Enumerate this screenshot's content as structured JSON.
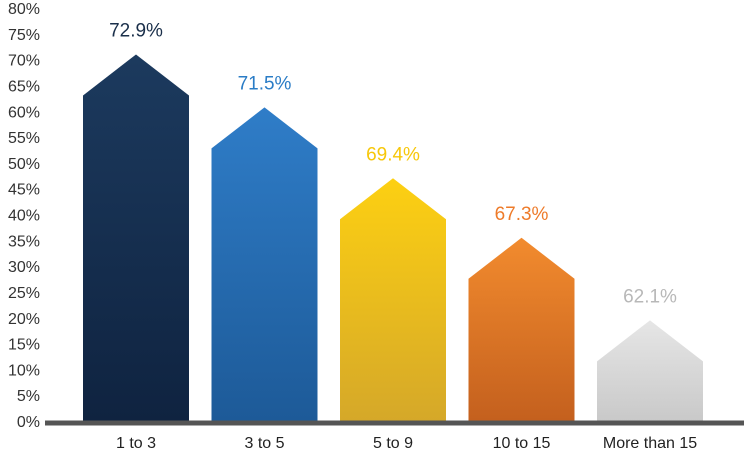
{
  "chart_data": {
    "type": "bar",
    "categories": [
      "1 to 3",
      "3 to 5",
      "5 to 9",
      "10 to 15",
      "More than 15"
    ],
    "values": [
      72.9,
      71.5,
      69.4,
      67.3,
      62.1
    ],
    "data_labels": [
      "72.9%",
      "71.5%",
      "69.4%",
      "67.3%",
      "62.1%"
    ],
    "bar_shape": "house-arrow",
    "ylim": [
      0,
      80
    ],
    "yticks": [
      "0%",
      "5%",
      "10%",
      "15%",
      "20%",
      "25%",
      "30%",
      "35%",
      "40%",
      "45%",
      "50%",
      "55%",
      "60%",
      "65%",
      "70%",
      "75%",
      "80%"
    ],
    "title": "",
    "xlabel": "",
    "ylabel": "",
    "grid": false,
    "legend": "none",
    "colors": {
      "bars": [
        [
          "#1c3a5e",
          "#0f2340"
        ],
        [
          "#2f7dc8",
          "#1d5a98"
        ],
        [
          "#fdd012",
          "#d5a829"
        ],
        [
          "#f28b2e",
          "#c4601e"
        ],
        [
          "#e6e6e6",
          "#c9c9c9"
        ]
      ],
      "labels": [
        "#1a2f4a",
        "#2a7cc6",
        "#f7c70a",
        "#ee7b2a",
        "#b8b8b8"
      ],
      "axis": "#555555"
    }
  }
}
